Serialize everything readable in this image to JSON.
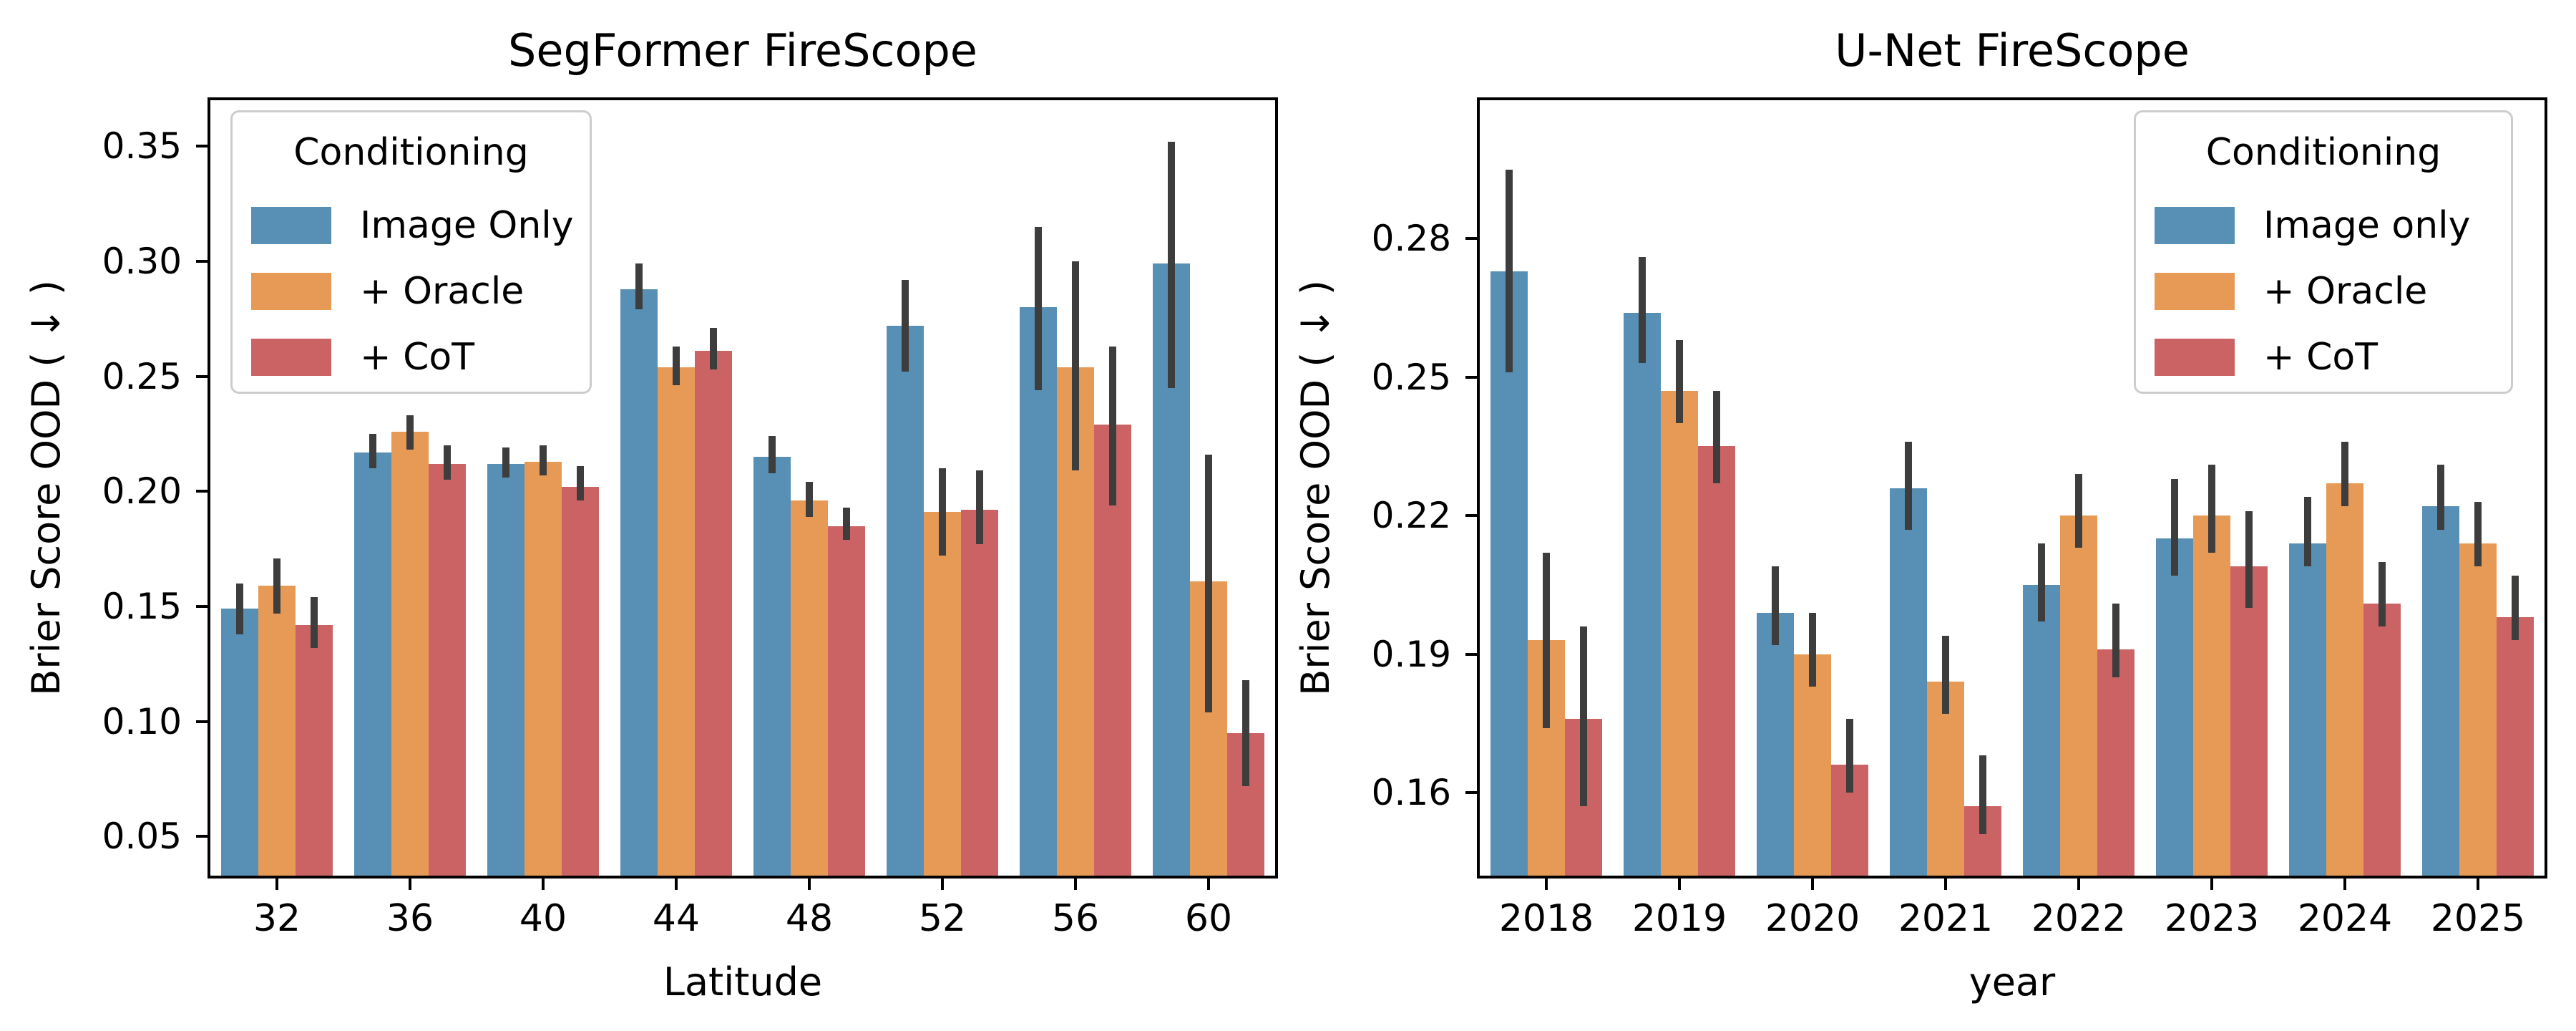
{
  "figure": {
    "background": "#ffffff",
    "shared_ylabel": "Brier Score OOD ( ↓ )"
  },
  "colors": {
    "image_only": "#5890b5",
    "oracle": "#e79a56",
    "cot": "#cb6365",
    "errorbar": "#3d3d3d",
    "spine": "#000000",
    "legend_border": "#cccccc"
  },
  "chart_data": [
    {
      "type": "bar",
      "title": "SegFormer FireScope",
      "xlabel": "Latitude",
      "ylabel": "Brier Score OOD ( ↓ )",
      "categories": [
        "32",
        "36",
        "40",
        "44",
        "48",
        "52",
        "56",
        "60"
      ],
      "yticks": [
        "0.05",
        "0.10",
        "0.15",
        "0.20",
        "0.25",
        "0.30",
        "0.35"
      ],
      "ylim": [
        0.033,
        0.37
      ],
      "grid": false,
      "legend": {
        "title": "Conditioning",
        "position": "upper-left",
        "entries": [
          "Image Only",
          "+ Oracle",
          "+ CoT"
        ]
      },
      "series": [
        {
          "name": "Image Only",
          "color": "#5890b5",
          "values": [
            0.149,
            0.217,
            0.212,
            0.288,
            0.215,
            0.272,
            0.28,
            0.299
          ],
          "err_lo": [
            0.138,
            0.21,
            0.206,
            0.279,
            0.208,
            0.252,
            0.244,
            0.245
          ],
          "err_hi": [
            0.16,
            0.225,
            0.219,
            0.299,
            0.224,
            0.292,
            0.315,
            0.352
          ]
        },
        {
          "name": "+ Oracle",
          "color": "#e79a56",
          "values": [
            0.159,
            0.226,
            0.213,
            0.254,
            0.196,
            0.191,
            0.254,
            0.161
          ],
          "err_lo": [
            0.147,
            0.218,
            0.207,
            0.246,
            0.189,
            0.172,
            0.209,
            0.104
          ],
          "err_hi": [
            0.171,
            0.233,
            0.22,
            0.263,
            0.204,
            0.21,
            0.3,
            0.216
          ]
        },
        {
          "name": "+ CoT",
          "color": "#cb6365",
          "values": [
            0.142,
            0.212,
            0.202,
            0.261,
            0.185,
            0.192,
            0.229,
            0.095
          ],
          "err_lo": [
            0.132,
            0.205,
            0.196,
            0.253,
            0.179,
            0.177,
            0.194,
            0.072
          ],
          "err_hi": [
            0.154,
            0.22,
            0.211,
            0.271,
            0.193,
            0.209,
            0.263,
            0.118
          ]
        }
      ]
    },
    {
      "type": "bar",
      "title": "U-Net FireScope",
      "xlabel": "year",
      "ylabel": "Brier Score OOD ( ↓ )",
      "categories": [
        "2018",
        "2019",
        "2020",
        "2021",
        "2022",
        "2023",
        "2024",
        "2025"
      ],
      "yticks": [
        "0.16",
        "0.19",
        "0.22",
        "0.25",
        "0.28"
      ],
      "ylim": [
        0.142,
        0.31
      ],
      "grid": false,
      "legend": {
        "title": "Conditioning",
        "position": "upper-right",
        "entries": [
          "Image only",
          "+ Oracle",
          "+ CoT"
        ]
      },
      "series": [
        {
          "name": "Image only",
          "color": "#5890b5",
          "values": [
            0.273,
            0.264,
            0.199,
            0.226,
            0.205,
            0.215,
            0.214,
            0.222
          ],
          "err_lo": [
            0.251,
            0.253,
            0.192,
            0.217,
            0.197,
            0.207,
            0.209,
            0.217
          ],
          "err_hi": [
            0.295,
            0.276,
            0.209,
            0.236,
            0.214,
            0.228,
            0.224,
            0.231
          ]
        },
        {
          "name": "+ Oracle",
          "color": "#e79a56",
          "values": [
            0.193,
            0.247,
            0.19,
            0.184,
            0.22,
            0.22,
            0.227,
            0.214
          ],
          "err_lo": [
            0.174,
            0.24,
            0.183,
            0.177,
            0.213,
            0.212,
            0.222,
            0.209
          ],
          "err_hi": [
            0.212,
            0.258,
            0.199,
            0.194,
            0.229,
            0.231,
            0.236,
            0.223
          ]
        },
        {
          "name": "+ CoT",
          "color": "#cb6365",
          "values": [
            0.176,
            0.235,
            0.166,
            0.157,
            0.191,
            0.209,
            0.201,
            0.198
          ],
          "err_lo": [
            0.157,
            0.227,
            0.16,
            0.151,
            0.185,
            0.2,
            0.196,
            0.193
          ],
          "err_hi": [
            0.196,
            0.247,
            0.176,
            0.168,
            0.201,
            0.221,
            0.21,
            0.207
          ]
        }
      ]
    }
  ]
}
